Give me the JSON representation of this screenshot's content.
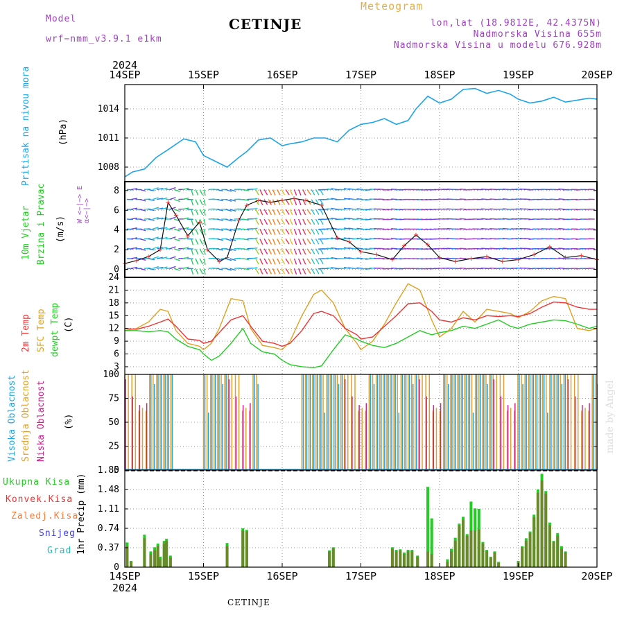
{
  "header": {
    "model_label": "Model",
    "model_name": "wrf−nmm_v3.9.1  e1km",
    "station": "CETINJE",
    "meteogram": "Meteogram",
    "lonlat": "lon,lat (18.9812E, 42.4375N)",
    "elevation": "Nadmorska Visina 655m",
    "model_elevation": "Nadmorska Visina u modelu 676.928m"
  },
  "footer": {
    "station": "CETINJE"
  },
  "watermark": "made by Angel",
  "colors": {
    "pressure": "#1ea4ea",
    "wind_label": "#22cc22",
    "temp2m": "#ee3333",
    "sfc_temp": "#e0a020",
    "dewpt": "#22cc22",
    "high_cloud": "#1ea4ea",
    "mid_cloud": "#e0a030",
    "low_cloud": "#d0208a",
    "header_purple": "#a040c0",
    "meteogram_orange": "#e8b040",
    "total_precip": "#22cc22",
    "conv_precip": "#ee3333",
    "frz_precip": "#ff7a30",
    "snow": "#4040e0",
    "hail": "#20c0c0"
  },
  "axes": {
    "year": "2024",
    "days": [
      "14SEP",
      "15SEP",
      "16SEP",
      "17SEP",
      "18SEP",
      "19SEP",
      "20SEP"
    ]
  },
  "labels": {
    "pressure_title": "Pritisak na nivou mora",
    "pressure_unit": "(hPa)",
    "wind_title1": "10m Vjetar",
    "wind_title2": "Brzina i Pravac",
    "wind_unit": "(m/s)",
    "wind_rose": "W  <−|−>  E",
    "wind_rose2": "α<−|−>",
    "temp_title1": "2m Temp",
    "temp_title2": "SFC Temp",
    "temp_title3": "dewpt Temp",
    "temp_unit": "(C)",
    "cloud_title1": "Visoka Oblacnost",
    "cloud_title2": "Srednja Oblacnost",
    "cloud_title3": "Niska Oblacnost",
    "cloud_unit": "(%)",
    "precip_title": "1hr Precip (mm)",
    "legend": [
      "Ukupna Kisa",
      "Konvek.Kisa",
      "Zaledj.Kisa",
      "Snijeg",
      "Grad"
    ]
  },
  "chart_data": [
    {
      "type": "line",
      "title": "Pritisak na nivou mora",
      "ylabel": "(hPa)",
      "yticks": [
        1008,
        1011,
        1014
      ],
      "ylim": [
        1006.5,
        1016.5
      ],
      "x_days": [
        0,
        0.1,
        0.25,
        0.4,
        0.55,
        0.75,
        0.9,
        1.0,
        1.15,
        1.3,
        1.45,
        1.55,
        1.7,
        1.85,
        2.0,
        2.1,
        2.25,
        2.4,
        2.55,
        2.7,
        2.85,
        3.0,
        3.15,
        3.3,
        3.45,
        3.6,
        3.7,
        3.85,
        4.0,
        4.15,
        4.3,
        4.45,
        4.6,
        4.75,
        4.9,
        5.0,
        5.15,
        5.3,
        5.45,
        5.6,
        5.75,
        5.9,
        6.0
      ],
      "series": [
        {
          "name": "pressure",
          "values": [
            1007.0,
            1007.5,
            1007.8,
            1009.0,
            1009.8,
            1010.9,
            1010.6,
            1009.2,
            1008.6,
            1008.0,
            1009.0,
            1009.6,
            1010.8,
            1011.0,
            1010.2,
            1010.4,
            1010.6,
            1011.0,
            1011.0,
            1010.6,
            1011.8,
            1012.4,
            1012.6,
            1013.0,
            1012.4,
            1012.8,
            1014.0,
            1015.3,
            1014.6,
            1015.0,
            1016.0,
            1016.1,
            1015.6,
            1015.9,
            1015.5,
            1015.0,
            1014.6,
            1014.8,
            1015.2,
            1014.7,
            1014.9,
            1015.1,
            1015.0
          ]
        }
      ]
    },
    {
      "type": "line",
      "title": "10m Vjetar Brzina i Pravac",
      "ylabel": "(m/s)",
      "yticks": [
        0,
        2,
        4,
        6,
        8
      ],
      "ylim": [
        -0.8,
        8.9
      ],
      "x_days": [
        0,
        0.15,
        0.3,
        0.45,
        0.55,
        0.65,
        0.8,
        0.95,
        1.05,
        1.2,
        1.3,
        1.45,
        1.55,
        1.7,
        1.85,
        2.0,
        2.15,
        2.3,
        2.5,
        2.7,
        2.85,
        3.0,
        3.2,
        3.4,
        3.55,
        3.7,
        3.85,
        4.0,
        4.2,
        4.4,
        4.6,
        4.8,
        5.0,
        5.2,
        5.4,
        5.6,
        5.8,
        6.0
      ],
      "series": [
        {
          "name": "wind speed",
          "values": [
            0.6,
            0.9,
            1.3,
            2.0,
            6.8,
            5.5,
            3.4,
            4.8,
            2.0,
            0.8,
            1.2,
            5.0,
            6.5,
            7.0,
            6.8,
            7.0,
            7.2,
            7.0,
            6.5,
            3.2,
            2.8,
            1.8,
            1.5,
            1.0,
            2.4,
            3.5,
            2.5,
            1.2,
            0.8,
            1.1,
            1.3,
            0.8,
            1.0,
            1.5,
            2.3,
            1.2,
            1.4,
            1.0
          ]
        }
      ]
    },
    {
      "type": "line",
      "title": "2m Temp / SFC Temp / dewpt Temp",
      "ylabel": "(C)",
      "yticks": [
        3,
        6,
        9,
        12,
        15,
        18,
        21,
        24
      ],
      "ylim": [
        1.2,
        24
      ],
      "x_days": [
        0,
        0.15,
        0.3,
        0.45,
        0.55,
        0.65,
        0.8,
        0.95,
        1.0,
        1.1,
        1.2,
        1.35,
        1.5,
        1.6,
        1.75,
        1.9,
        2.0,
        2.1,
        2.25,
        2.4,
        2.5,
        2.65,
        2.8,
        2.95,
        3.0,
        3.15,
        3.3,
        3.45,
        3.6,
        3.75,
        3.9,
        4.0,
        4.15,
        4.3,
        4.45,
        4.6,
        4.75,
        4.9,
        5.0,
        5.15,
        5.3,
        5.45,
        5.6,
        5.75,
        5.9,
        6.0
      ],
      "series": [
        {
          "name": "2m Temp",
          "values": [
            12,
            11.8,
            12.5,
            13.5,
            14.2,
            12.5,
            9.5,
            9.2,
            8.5,
            9.0,
            11.0,
            14.0,
            15.0,
            12.5,
            9.0,
            8.5,
            7.8,
            8.5,
            11.5,
            15.5,
            16.0,
            15.0,
            12.0,
            10.5,
            9.5,
            10.0,
            12.5,
            15.0,
            17.8,
            18.0,
            16.0,
            14.0,
            13.5,
            14.5,
            14.0,
            15.0,
            14.8,
            15.0,
            14.8,
            15.5,
            17.0,
            18.2,
            18.0,
            17.0,
            16.5,
            16.5
          ]
        },
        {
          "name": "SFC Temp",
          "values": [
            11.5,
            12.0,
            13.5,
            16.5,
            16.0,
            11.5,
            8.5,
            7.8,
            7.0,
            8.5,
            12.0,
            19.0,
            18.5,
            12.0,
            8.0,
            7.5,
            7.0,
            9.0,
            15.0,
            20.0,
            21.0,
            18.0,
            12.0,
            8.5,
            7.0,
            9.0,
            13.0,
            18.0,
            22.5,
            21.0,
            14.0,
            10.0,
            12.0,
            16.0,
            13.5,
            16.5,
            16.0,
            15.5,
            14.5,
            16.0,
            18.5,
            19.5,
            19.0,
            12.0,
            11.5,
            12.0
          ]
        },
        {
          "name": "dewpt Temp",
          "values": [
            11.5,
            11.5,
            11.2,
            11.5,
            11.2,
            9.5,
            7.8,
            7.0,
            6.0,
            4.5,
            5.5,
            8.5,
            12.0,
            8.5,
            6.5,
            6.0,
            4.5,
            3.5,
            3.0,
            2.8,
            3.2,
            7.0,
            10.5,
            9.5,
            9.0,
            8.0,
            7.5,
            8.5,
            10.0,
            11.5,
            10.5,
            11.0,
            11.5,
            12.5,
            12.0,
            13.0,
            14.0,
            12.5,
            12.0,
            13.0,
            13.5,
            14.0,
            13.8,
            13.0,
            12.0,
            12.5
          ]
        }
      ]
    },
    {
      "type": "bar",
      "title": "Visoka / Srednja / Niska Oblacnost",
      "ylabel": "(%)",
      "yticks": [
        0,
        25,
        50,
        75,
        100
      ],
      "ylim": [
        0,
        100
      ],
      "note_ranges_days": [
        [
          0,
          0.6
        ],
        [
          1.0,
          1.7
        ],
        [
          2.25,
          6.0
        ]
      ],
      "series": [
        {
          "name": "Srednja Oblacnost",
          "values": [
            100,
            100,
            100,
            100,
            62,
            65,
            62,
            100,
            100,
            100,
            100,
            100,
            100,
            100,
            100,
            100,
            100,
            100,
            100,
            100,
            100
          ]
        },
        {
          "name": "Visoka Oblacnost",
          "values": [
            0,
            0,
            0,
            0,
            0,
            0,
            0,
            100,
            90,
            100,
            100,
            100,
            100,
            100,
            100,
            60,
            100,
            100,
            100,
            90,
            100
          ]
        },
        {
          "name": "Niska Oblacnost",
          "values": [
            95,
            0,
            77,
            0,
            68,
            0,
            70,
            0,
            0,
            0,
            0,
            0,
            0,
            0,
            0,
            0,
            0,
            0,
            0,
            0,
            0
          ]
        }
      ]
    },
    {
      "type": "bar",
      "title": "1hr Precip",
      "ylabel": "(mm)",
      "yticks": [
        0,
        0.37,
        0.74,
        1.11,
        1.48,
        1.85
      ],
      "ylim": [
        0,
        1.85
      ],
      "x_days": [
        0.03,
        0.08,
        0.25,
        0.33,
        0.38,
        0.42,
        0.45,
        0.5,
        0.53,
        0.58,
        1.3,
        1.5,
        1.55,
        2.6,
        2.65,
        3.4,
        3.45,
        3.5,
        3.55,
        3.6,
        3.65,
        3.72,
        3.85,
        3.9,
        4.1,
        4.15,
        4.2,
        4.25,
        4.3,
        4.35,
        4.4,
        4.45,
        4.5,
        4.55,
        4.6,
        4.65,
        4.7,
        4.75,
        5.0,
        5.05,
        5.1,
        5.15,
        5.2,
        5.25,
        5.3,
        5.35,
        5.4,
        5.45,
        5.5,
        5.55,
        5.6
      ],
      "series": [
        {
          "name": "Ukupna Kisa",
          "values": [
            0.47,
            0.12,
            0.62,
            0.3,
            0.38,
            0.45,
            0.2,
            0.5,
            0.54,
            0.22,
            0.46,
            0.74,
            0.71,
            0.32,
            0.38,
            0.38,
            0.33,
            0.34,
            0.28,
            0.33,
            0.33,
            0.22,
            1.53,
            0.93,
            0.15,
            0.35,
            0.56,
            0.83,
            0.96,
            0.63,
            1.25,
            1.12,
            1.11,
            0.48,
            0.33,
            0.2,
            0.3,
            0.1,
            0.12,
            0.4,
            0.55,
            0.68,
            1.0,
            1.48,
            1.78,
            1.45,
            0.85,
            0.5,
            0.65,
            0.4,
            0.3
          ]
        },
        {
          "name": "Konvek.Kisa",
          "values": [
            0.4,
            0.1,
            0.55,
            0.25,
            0.32,
            0.4,
            0.15,
            0.45,
            0.5,
            0.18,
            0.4,
            0.7,
            0.68,
            0.3,
            0.36,
            0.35,
            0.3,
            0.32,
            0.25,
            0.3,
            0.3,
            0.2,
            0.3,
            0.25,
            0.1,
            0.3,
            0.5,
            0.8,
            0.9,
            0.6,
            0.7,
            0.7,
            0.72,
            0.45,
            0.3,
            0.18,
            0.28,
            0.08,
            0.1,
            0.38,
            0.5,
            0.65,
            0.95,
            1.42,
            1.65,
            1.4,
            0.8,
            0.48,
            0.6,
            0.35,
            0.28
          ]
        }
      ]
    }
  ]
}
